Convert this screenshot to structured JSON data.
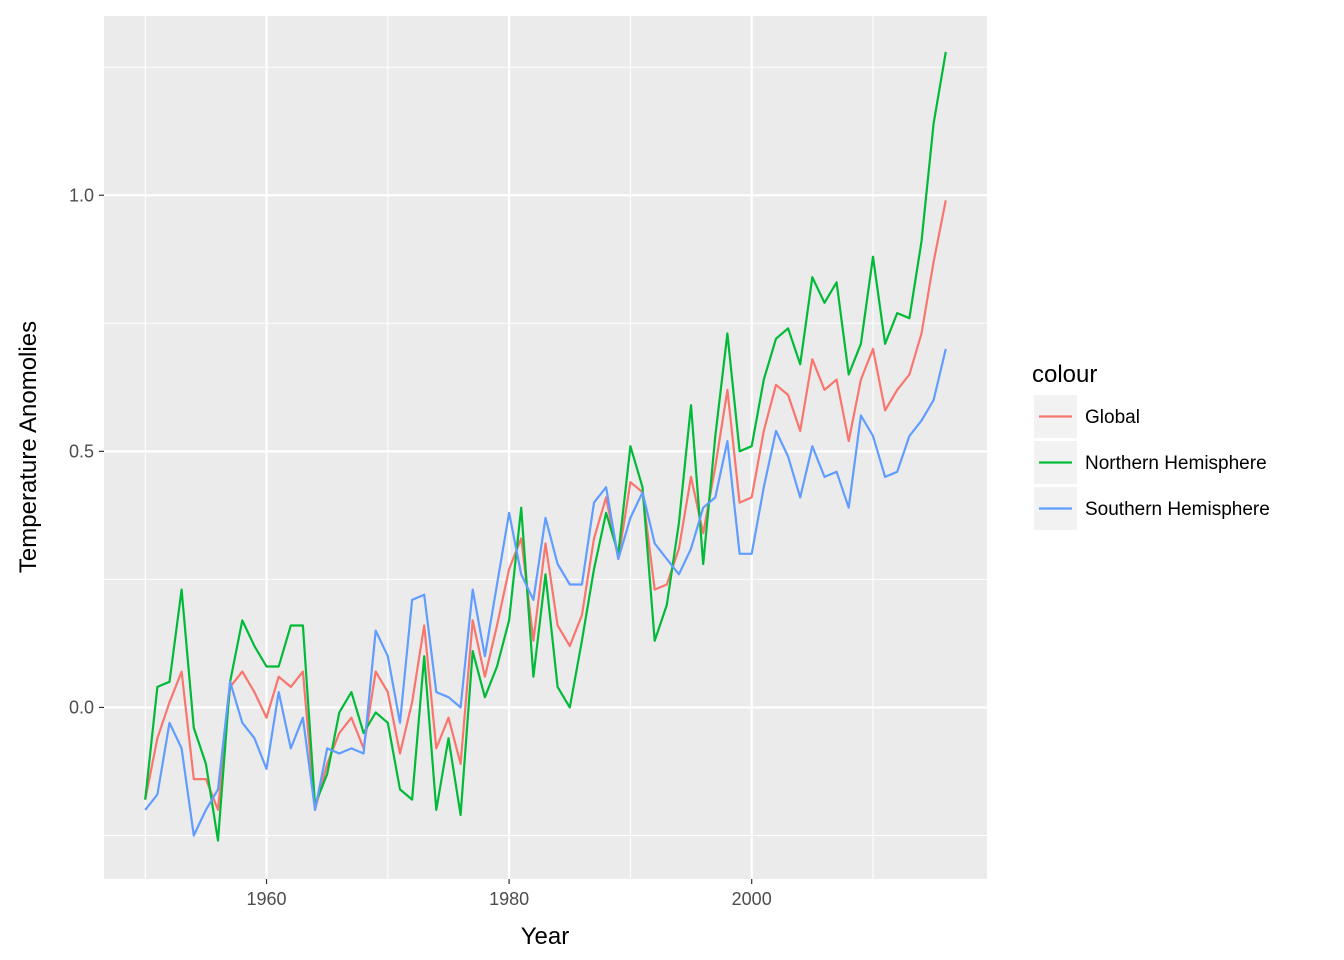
{
  "chart_data": {
    "type": "line",
    "title": "",
    "xlabel": "Year",
    "ylabel": "Temperature Anomolies",
    "xlim": [
      1946.6,
      2019.4
    ],
    "ylim": [
      -0.335,
      1.35
    ],
    "xticks": [
      1960,
      1980,
      2000
    ],
    "xtick_labels": [
      "1960",
      "1980",
      "2000"
    ],
    "yticks": [
      0.0,
      0.5,
      1.0
    ],
    "ytick_labels": [
      "0.0",
      "0.5",
      "1.0"
    ],
    "grid": true,
    "legend": {
      "title": "colour",
      "position": "right"
    },
    "x": [
      1950,
      1951,
      1952,
      1953,
      1954,
      1955,
      1956,
      1957,
      1958,
      1959,
      1960,
      1961,
      1962,
      1963,
      1964,
      1965,
      1966,
      1967,
      1968,
      1969,
      1970,
      1971,
      1972,
      1973,
      1974,
      1975,
      1976,
      1977,
      1978,
      1979,
      1980,
      1981,
      1982,
      1983,
      1984,
      1985,
      1986,
      1987,
      1988,
      1989,
      1990,
      1991,
      1992,
      1993,
      1994,
      1995,
      1996,
      1997,
      1998,
      1999,
      2000,
      2001,
      2002,
      2003,
      2004,
      2005,
      2006,
      2007,
      2008,
      2009,
      2010,
      2011,
      2012,
      2013,
      2014,
      2015,
      2016
    ],
    "series": [
      {
        "name": "Global",
        "color": "#F8766D",
        "values": [
          -0.18,
          -0.06,
          0.01,
          0.07,
          -0.14,
          -0.14,
          -0.2,
          0.04,
          0.07,
          0.03,
          -0.02,
          0.06,
          0.04,
          0.07,
          -0.2,
          -0.11,
          -0.05,
          -0.02,
          -0.08,
          0.07,
          0.03,
          -0.09,
          0.01,
          0.16,
          -0.08,
          -0.02,
          -0.11,
          0.17,
          0.06,
          0.16,
          0.27,
          0.33,
          0.13,
          0.32,
          0.16,
          0.12,
          0.18,
          0.33,
          0.41,
          0.29,
          0.44,
          0.42,
          0.23,
          0.24,
          0.31,
          0.45,
          0.34,
          0.47,
          0.62,
          0.4,
          0.41,
          0.54,
          0.63,
          0.61,
          0.54,
          0.68,
          0.62,
          0.64,
          0.52,
          0.64,
          0.7,
          0.58,
          0.62,
          0.65,
          0.73,
          0.87,
          0.99
        ]
      },
      {
        "name": "Northern Hemisphere",
        "color": "#00BA38",
        "values": [
          -0.18,
          0.04,
          0.05,
          0.23,
          -0.04,
          -0.11,
          -0.26,
          0.05,
          0.17,
          0.12,
          0.08,
          0.08,
          0.16,
          0.16,
          -0.19,
          -0.13,
          -0.01,
          0.03,
          -0.05,
          -0.01,
          -0.03,
          -0.16,
          -0.18,
          0.1,
          -0.2,
          -0.06,
          -0.21,
          0.11,
          0.02,
          0.08,
          0.17,
          0.39,
          0.06,
          0.26,
          0.04,
          0.0,
          0.13,
          0.27,
          0.38,
          0.3,
          0.51,
          0.43,
          0.13,
          0.2,
          0.36,
          0.59,
          0.28,
          0.53,
          0.73,
          0.5,
          0.51,
          0.64,
          0.72,
          0.74,
          0.67,
          0.84,
          0.79,
          0.83,
          0.65,
          0.71,
          0.88,
          0.71,
          0.77,
          0.76,
          0.91,
          1.14,
          1.28
        ]
      },
      {
        "name": "Southern Hemisphere",
        "color": "#619CFF",
        "values": [
          -0.2,
          -0.17,
          -0.03,
          -0.08,
          -0.25,
          -0.2,
          -0.16,
          0.05,
          -0.03,
          -0.06,
          -0.12,
          0.03,
          -0.08,
          -0.02,
          -0.2,
          -0.08,
          -0.09,
          -0.08,
          -0.09,
          0.15,
          0.1,
          -0.03,
          0.21,
          0.22,
          0.03,
          0.02,
          0.0,
          0.23,
          0.1,
          0.24,
          0.38,
          0.26,
          0.21,
          0.37,
          0.28,
          0.24,
          0.24,
          0.4,
          0.43,
          0.29,
          0.37,
          0.42,
          0.32,
          0.29,
          0.26,
          0.31,
          0.39,
          0.41,
          0.52,
          0.3,
          0.3,
          0.43,
          0.54,
          0.49,
          0.41,
          0.51,
          0.45,
          0.46,
          0.39,
          0.57,
          0.53,
          0.45,
          0.46,
          0.53,
          0.56,
          0.6,
          0.7
        ]
      }
    ]
  }
}
